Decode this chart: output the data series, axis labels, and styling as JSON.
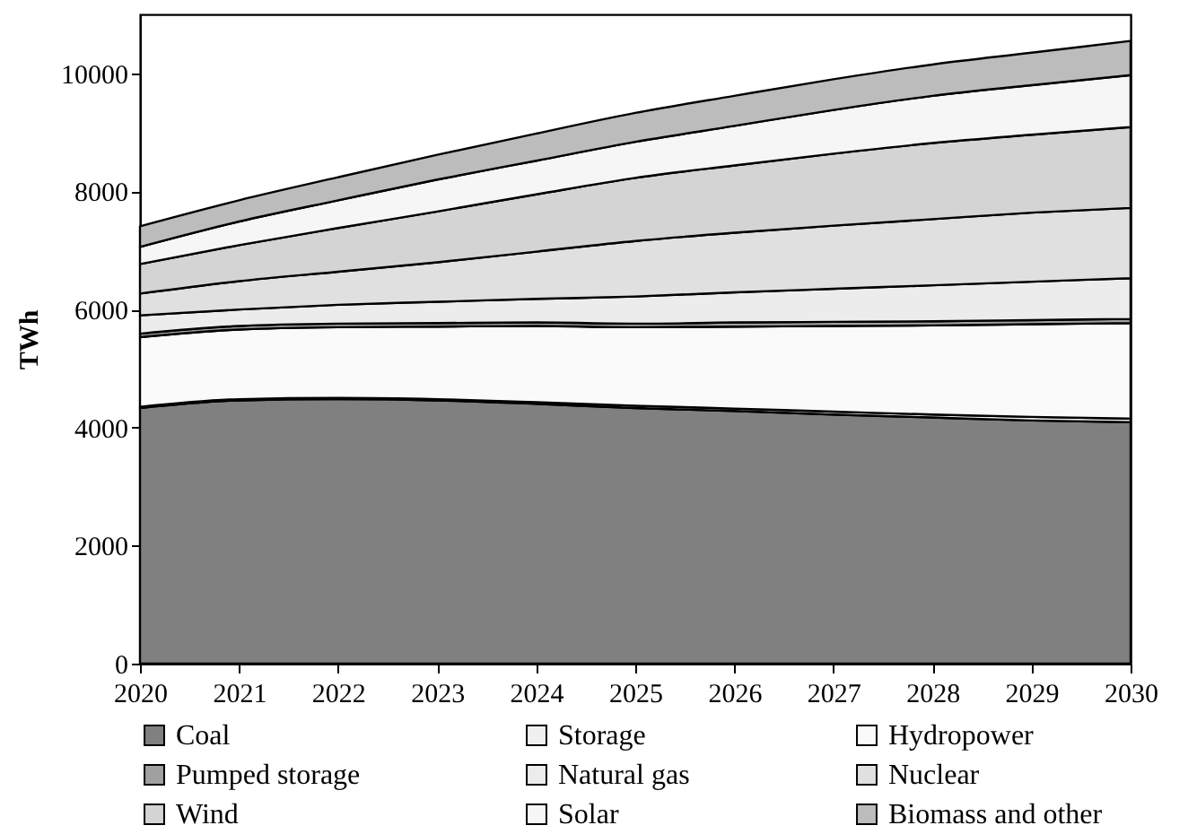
{
  "chart_data": {
    "type": "area",
    "stacked": true,
    "ylabel": "TWh",
    "x": [
      2020,
      2021,
      2022,
      2023,
      2024,
      2025,
      2026,
      2027,
      2028,
      2029,
      2030
    ],
    "xlim": [
      2020,
      2030
    ],
    "xticks": [
      2020,
      2021,
      2022,
      2023,
      2024,
      2025,
      2026,
      2027,
      2028,
      2029,
      2030
    ],
    "ylim": [
      0,
      11000
    ],
    "yticks": [
      0,
      2000,
      4000,
      6000,
      8000,
      10000
    ],
    "grid": false,
    "legend": "bottom",
    "series": [
      {
        "name": "Coal",
        "color": "#808080",
        "values": [
          4330,
          4460,
          4480,
          4460,
          4400,
          4330,
          4280,
          4220,
          4170,
          4120,
          4090
        ]
      },
      {
        "name": "Storage",
        "color": "#f0f0f0",
        "values": [
          20,
          20,
          20,
          20,
          30,
          40,
          40,
          50,
          50,
          60,
          60
        ]
      },
      {
        "name": "Hydropower",
        "color": "#fafafa",
        "values": [
          1180,
          1180,
          1200,
          1230,
          1290,
          1330,
          1390,
          1450,
          1510,
          1570,
          1620
        ]
      },
      {
        "name": "Pumped storage",
        "color": "#a0a0a0",
        "values": [
          60,
          60,
          60,
          60,
          60,
          60,
          70,
          70,
          70,
          70,
          70
        ]
      },
      {
        "name": "Natural gas",
        "color": "#ececec",
        "values": [
          310,
          280,
          320,
          360,
          400,
          460,
          510,
          560,
          610,
          650,
          690
        ]
      },
      {
        "name": "Nuclear",
        "color": "#e0e0e0",
        "values": [
          370,
          480,
          560,
          670,
          800,
          940,
          1010,
          1070,
          1120,
          1170,
          1190
        ]
      },
      {
        "name": "Wind",
        "color": "#d4d4d4",
        "values": [
          500,
          610,
          740,
          860,
          970,
          1070,
          1140,
          1220,
          1290,
          1320,
          1370
        ]
      },
      {
        "name": "Solar",
        "color": "#f6f6f6",
        "values": [
          290,
          400,
          470,
          540,
          570,
          610,
          670,
          740,
          800,
          840,
          880
        ]
      },
      {
        "name": "Biomass and other",
        "color": "#bcbcbc",
        "values": [
          350,
          360,
          390,
          420,
          460,
          490,
          510,
          520,
          530,
          550,
          580
        ]
      }
    ]
  }
}
